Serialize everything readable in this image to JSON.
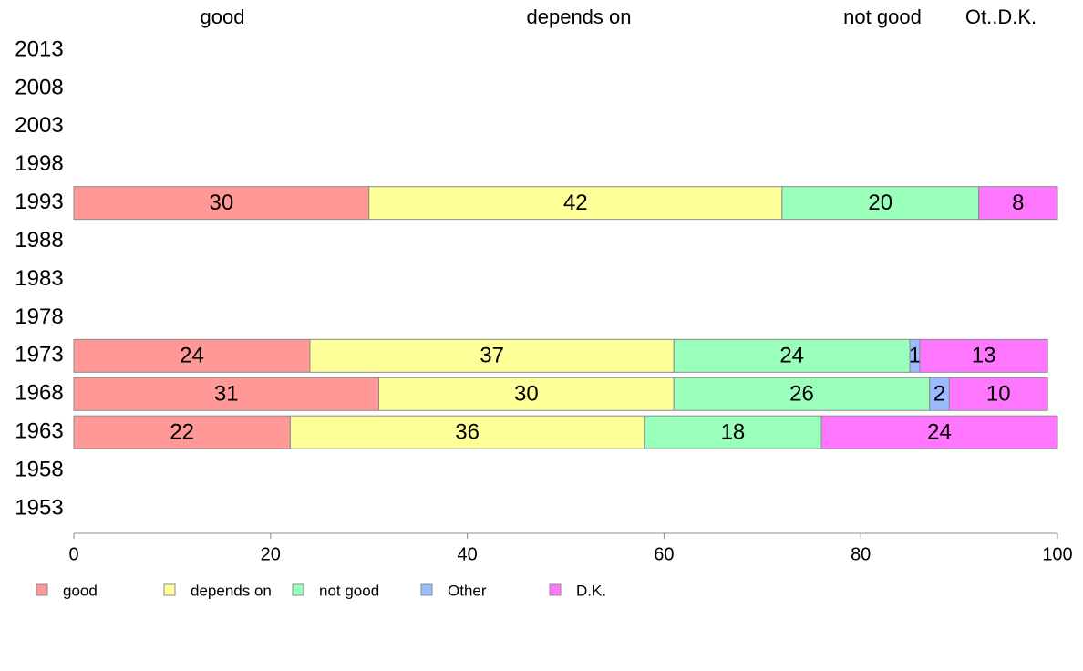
{
  "chart_data": {
    "type": "bar",
    "orientation": "horizontal",
    "stacked": true,
    "xlim": [
      0,
      100
    ],
    "x_ticks": [
      "0",
      "20",
      "40",
      "60",
      "80",
      "100"
    ],
    "categories": [
      "2013",
      "2008",
      "2003",
      "1998",
      "1993",
      "1988",
      "1983",
      "1978",
      "1973",
      "1968",
      "1963",
      "1958",
      "1953"
    ],
    "column_headers": [
      "good",
      "depends on",
      "not good",
      "Ot..D.K."
    ],
    "series": [
      {
        "name": "good",
        "color": "#FF9896",
        "values": [
          null,
          null,
          null,
          null,
          30,
          null,
          null,
          null,
          24,
          31,
          22,
          null,
          null
        ]
      },
      {
        "name": "depends on",
        "color": "#FFFF99",
        "values": [
          null,
          null,
          null,
          null,
          42,
          null,
          null,
          null,
          37,
          30,
          36,
          null,
          null
        ]
      },
      {
        "name": "not good",
        "color": "#99FFBB",
        "values": [
          null,
          null,
          null,
          null,
          20,
          null,
          null,
          null,
          24,
          26,
          18,
          null,
          null
        ]
      },
      {
        "name": "Other",
        "color": "#99BBFF",
        "values": [
          null,
          null,
          null,
          null,
          0,
          null,
          null,
          null,
          1,
          2,
          0,
          null,
          null
        ]
      },
      {
        "name": "D.K.",
        "color": "#FF77FF",
        "values": [
          null,
          null,
          null,
          null,
          8,
          null,
          null,
          null,
          13,
          10,
          24,
          null,
          null
        ]
      }
    ],
    "legend_position": "bottom-left",
    "grid": false
  }
}
